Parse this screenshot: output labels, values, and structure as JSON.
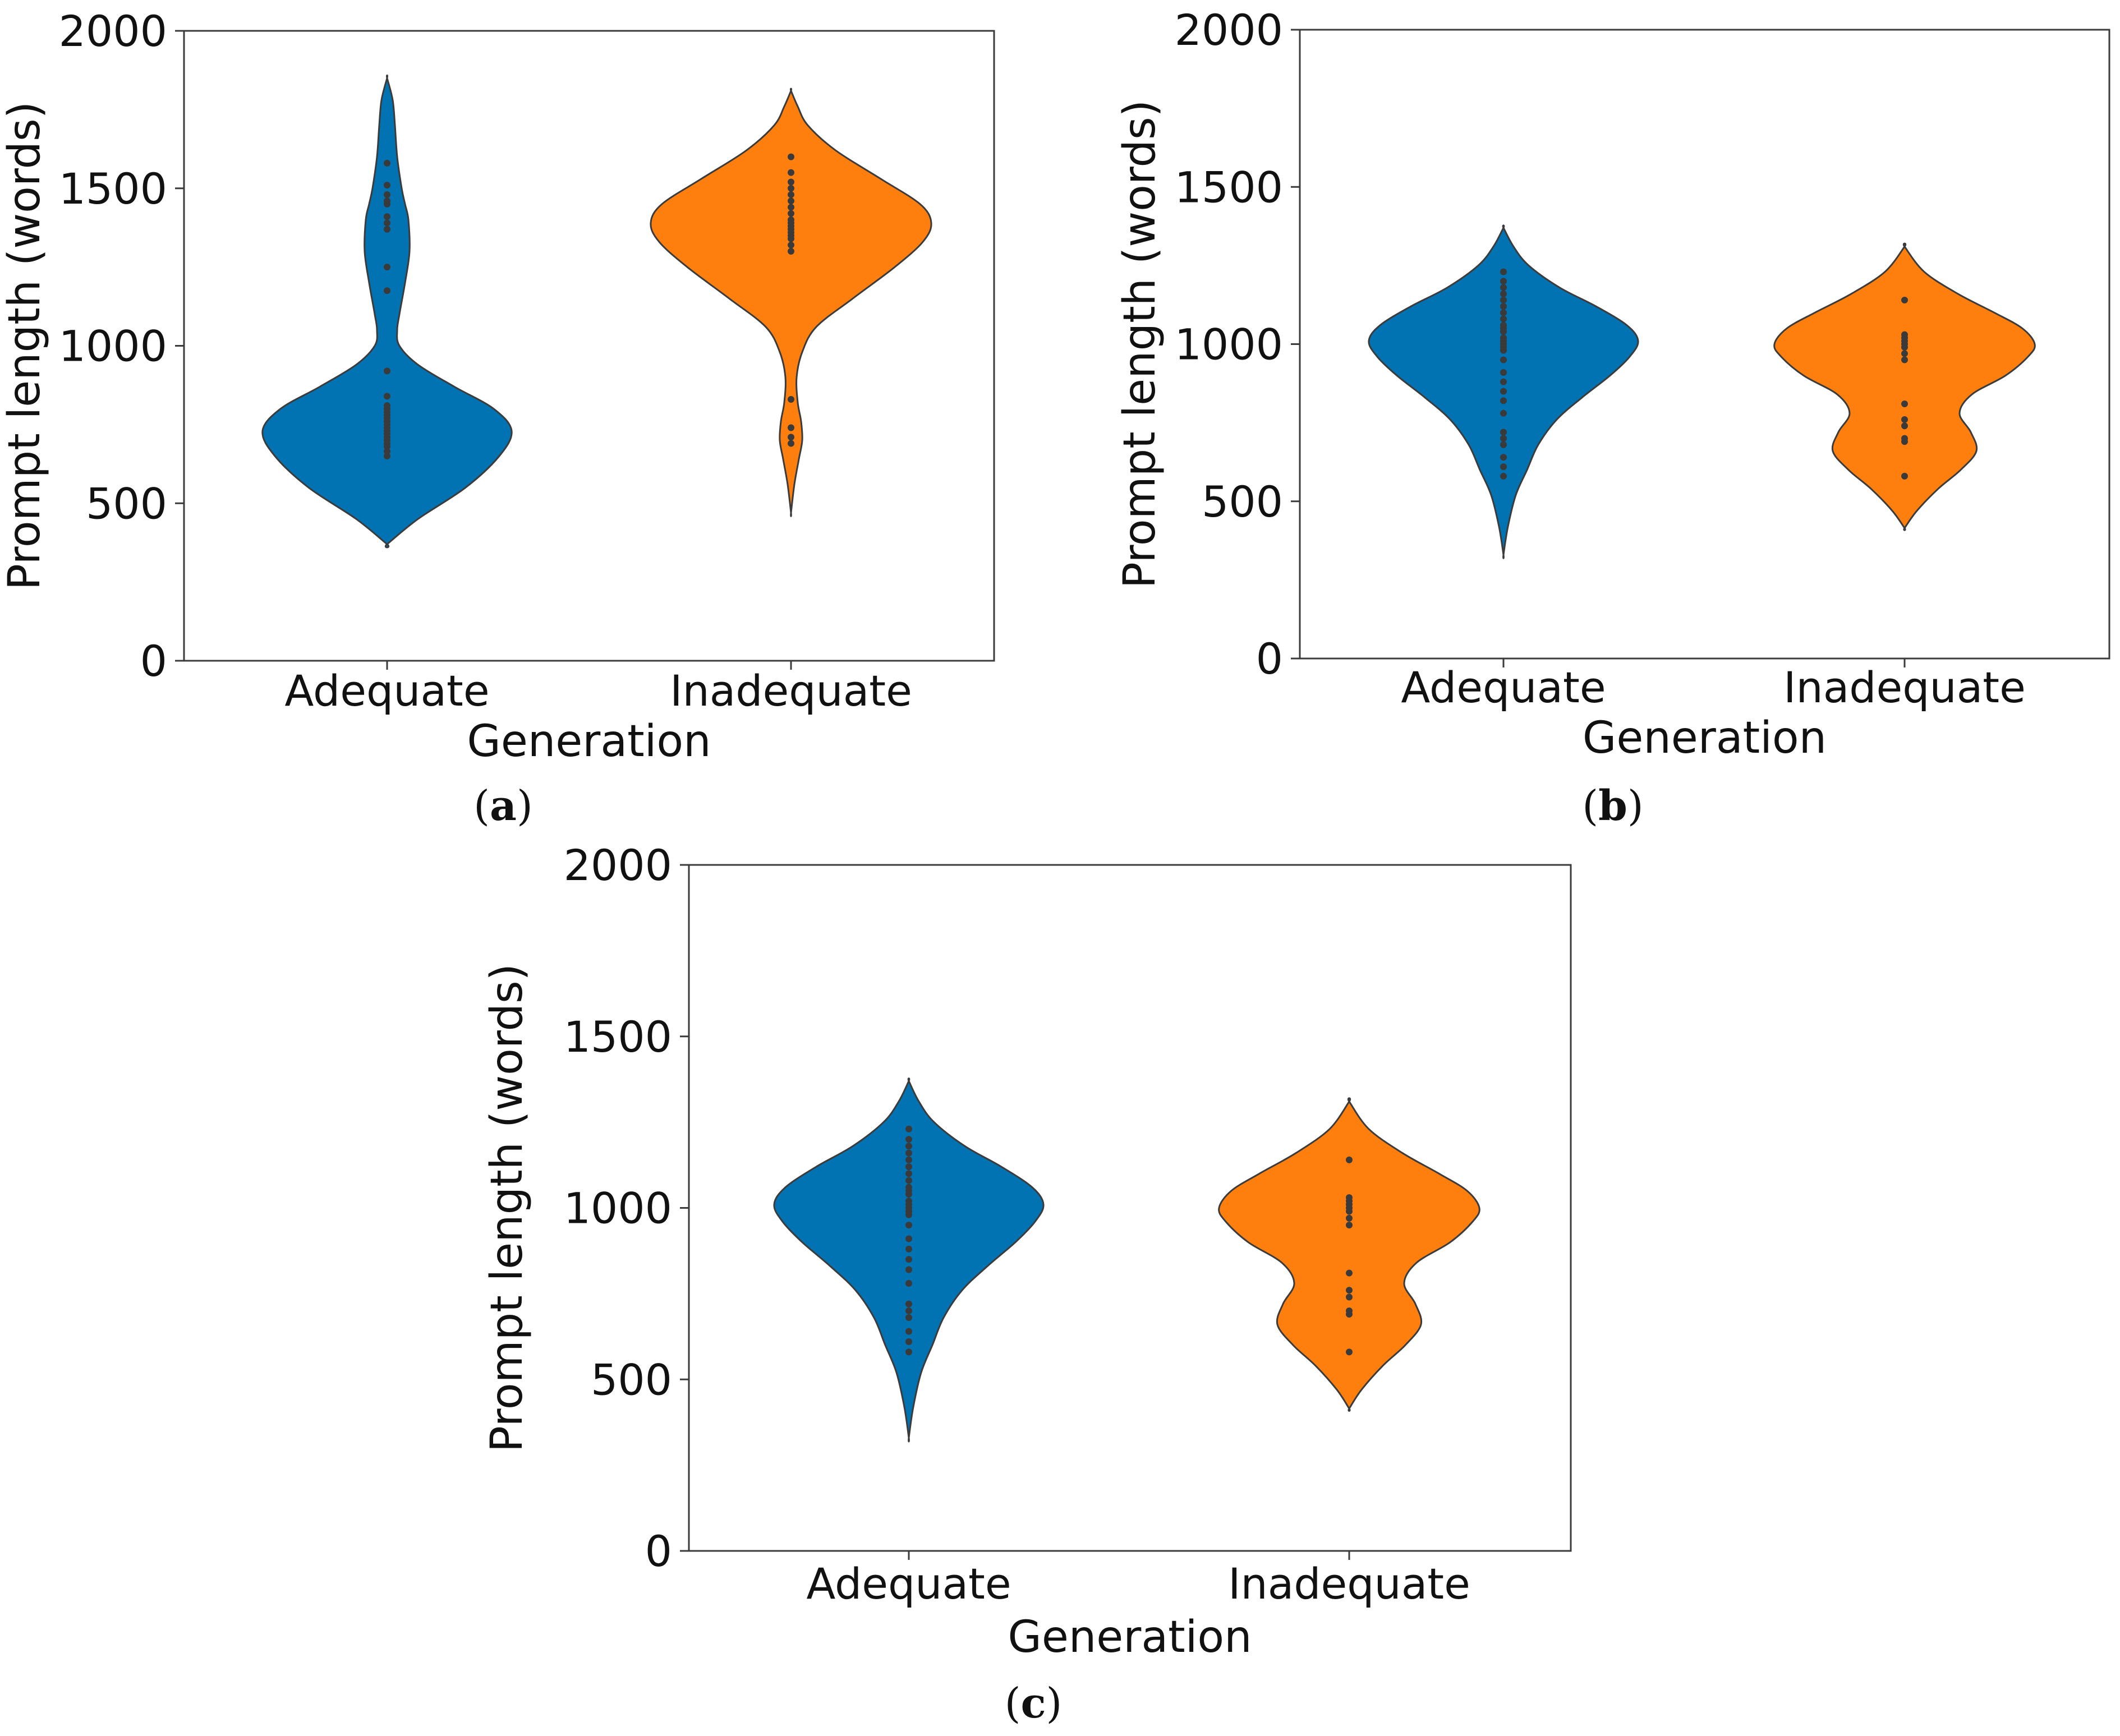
{
  "figure": {
    "captions": [
      {
        "open": "(",
        "letter": "a",
        "close": ")"
      },
      {
        "open": "(",
        "letter": "b",
        "close": ")"
      },
      {
        "open": "(",
        "letter": "c",
        "close": ")"
      }
    ]
  },
  "chart_data": [
    {
      "type": "violin",
      "panel": "a",
      "title": "",
      "xlabel": "Generation",
      "ylabel": "Prompt length (words)",
      "ylim": [
        0,
        2000
      ],
      "yticks": [
        "0",
        "500",
        "1000",
        "1500",
        "2000"
      ],
      "categories": [
        "Adequate",
        "Inadequate"
      ],
      "colors": [
        "#0173b2",
        "#ff7f0e"
      ],
      "series": [
        {
          "name": "Adequate",
          "profile": [
            [
              370,
              0
            ],
            [
              450,
              55
            ],
            [
              550,
              140
            ],
            [
              650,
              200
            ],
            [
              730,
              222
            ],
            [
              800,
              190
            ],
            [
              870,
              120
            ],
            [
              940,
              55
            ],
            [
              1000,
              22
            ],
            [
              1050,
              18
            ],
            [
              1100,
              22
            ],
            [
              1200,
              32
            ],
            [
              1300,
              40
            ],
            [
              1400,
              38
            ],
            [
              1450,
              32
            ],
            [
              1500,
              26
            ],
            [
              1600,
              18
            ],
            [
              1700,
              14
            ],
            [
              1780,
              10
            ],
            [
              1850,
              0
            ]
          ],
          "points": [
            650,
            665,
            680,
            690,
            700,
            710,
            720,
            730,
            740,
            750,
            760,
            770,
            780,
            790,
            800,
            810,
            840,
            920,
            1175,
            1250,
            1370,
            1390,
            1410,
            1450,
            1460,
            1480,
            1510,
            1580
          ]
        },
        {
          "name": "Inadequate",
          "profile": [
            [
              470,
              0
            ],
            [
              560,
              6
            ],
            [
              640,
              14
            ],
            [
              700,
              20
            ],
            [
              760,
              18
            ],
            [
              820,
              12
            ],
            [
              900,
              10
            ],
            [
              980,
              20
            ],
            [
              1060,
              45
            ],
            [
              1150,
              110
            ],
            [
              1250,
              185
            ],
            [
              1330,
              235
            ],
            [
              1390,
              250
            ],
            [
              1450,
              230
            ],
            [
              1530,
              160
            ],
            [
              1620,
              80
            ],
            [
              1700,
              30
            ],
            [
              1760,
              12
            ],
            [
              1810,
              0
            ]
          ],
          "points": [
            690,
            710,
            740,
            830,
            1300,
            1320,
            1340,
            1350,
            1360,
            1370,
            1380,
            1390,
            1400,
            1420,
            1440,
            1460,
            1480,
            1500,
            1520,
            1550,
            1600
          ]
        }
      ]
    },
    {
      "type": "violin",
      "panel": "b",
      "title": "",
      "xlabel": "Generation",
      "ylabel": "Prompt length (words)",
      "ylim": [
        0,
        2000
      ],
      "yticks": [
        "0",
        "500",
        "1000",
        "1500",
        "2000"
      ],
      "categories": [
        "Adequate",
        "Inadequate"
      ],
      "colors": [
        "#0173b2",
        "#ff7f0e"
      ],
      "series": [
        {
          "name": "Adequate",
          "profile": [
            [
              330,
              0
            ],
            [
              420,
              8
            ],
            [
              520,
              22
            ],
            [
              600,
              42
            ],
            [
              680,
              62
            ],
            [
              760,
              95
            ],
            [
              830,
              140
            ],
            [
              900,
              190
            ],
            [
              960,
              225
            ],
            [
              1010,
              240
            ],
            [
              1060,
              220
            ],
            [
              1120,
              165
            ],
            [
              1180,
              100
            ],
            [
              1250,
              45
            ],
            [
              1310,
              18
            ],
            [
              1370,
              0
            ]
          ],
          "points": [
            580,
            610,
            640,
            680,
            700,
            720,
            780,
            820,
            850,
            880,
            910,
            950,
            980,
            990,
            1000,
            1010,
            1020,
            1040,
            1050,
            1060,
            1080,
            1100,
            1120,
            1140,
            1160,
            1180,
            1200,
            1230
          ]
        },
        {
          "name": "Inadequate",
          "profile": [
            [
              415,
              0
            ],
            [
              470,
              22
            ],
            [
              540,
              60
            ],
            [
              600,
              100
            ],
            [
              660,
              128
            ],
            [
              720,
              118
            ],
            [
              780,
              98
            ],
            [
              840,
              120
            ],
            [
              900,
              180
            ],
            [
              960,
              220
            ],
            [
              1000,
              232
            ],
            [
              1050,
              210
            ],
            [
              1100,
              160
            ],
            [
              1160,
              95
            ],
            [
              1230,
              35
            ],
            [
              1310,
              0
            ]
          ],
          "points": [
            580,
            690,
            700,
            740,
            760,
            810,
            950,
            970,
            990,
            1000,
            1010,
            1020,
            1030,
            1140
          ]
        }
      ]
    },
    {
      "type": "violin",
      "panel": "c",
      "title": "",
      "xlabel": "Generation",
      "ylabel": "Prompt length (words)",
      "ylim": [
        0,
        2000
      ],
      "yticks": [
        "0",
        "500",
        "1000",
        "1500",
        "2000"
      ],
      "categories": [
        "Adequate",
        "Inadequate"
      ],
      "colors": [
        "#0173b2",
        "#ff7f0e"
      ],
      "series": [
        {
          "name": "Adequate",
          "profile": [
            [
              330,
              0
            ],
            [
              420,
              8
            ],
            [
              520,
              22
            ],
            [
              600,
              42
            ],
            [
              680,
              62
            ],
            [
              760,
              95
            ],
            [
              830,
              140
            ],
            [
              900,
              190
            ],
            [
              960,
              225
            ],
            [
              1010,
              240
            ],
            [
              1060,
              220
            ],
            [
              1120,
              165
            ],
            [
              1180,
              100
            ],
            [
              1250,
              45
            ],
            [
              1310,
              18
            ],
            [
              1370,
              0
            ]
          ],
          "points": [
            580,
            610,
            640,
            680,
            700,
            720,
            780,
            820,
            850,
            880,
            910,
            950,
            980,
            990,
            1000,
            1010,
            1020,
            1040,
            1050,
            1060,
            1080,
            1100,
            1120,
            1140,
            1160,
            1180,
            1200,
            1230
          ]
        },
        {
          "name": "Inadequate",
          "profile": [
            [
              415,
              0
            ],
            [
              470,
              22
            ],
            [
              540,
              60
            ],
            [
              600,
              100
            ],
            [
              660,
              128
            ],
            [
              720,
              118
            ],
            [
              780,
              98
            ],
            [
              840,
              120
            ],
            [
              900,
              180
            ],
            [
              960,
              220
            ],
            [
              1000,
              232
            ],
            [
              1050,
              210
            ],
            [
              1100,
              160
            ],
            [
              1160,
              95
            ],
            [
              1230,
              35
            ],
            [
              1310,
              0
            ]
          ],
          "points": [
            580,
            690,
            700,
            740,
            760,
            810,
            950,
            970,
            990,
            1000,
            1010,
            1020,
            1030,
            1140
          ]
        }
      ]
    }
  ]
}
